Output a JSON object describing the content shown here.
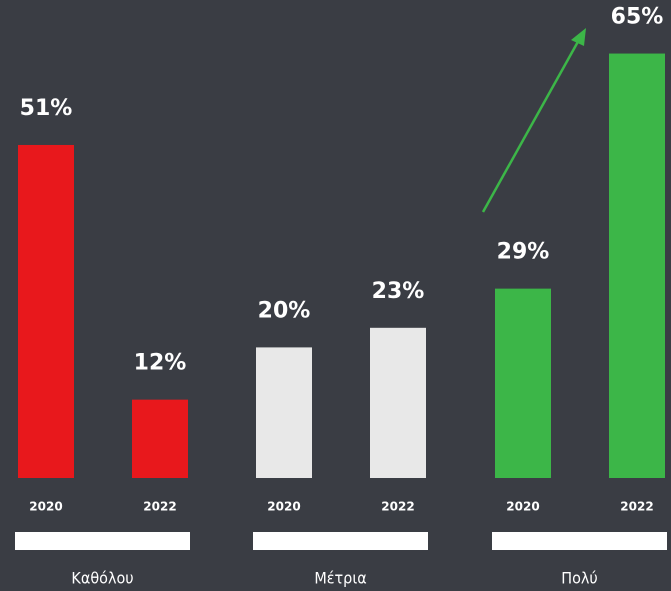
{
  "chart_data": {
    "type": "bar",
    "categories": [
      "Καθόλου",
      "Μέτρια",
      "Πολύ"
    ],
    "colors": [
      "#e8181c",
      "#e8e8e8",
      "#3cb648"
    ],
    "series": [
      {
        "name": "2020",
        "values": [
          51,
          20,
          29
        ],
        "value_labels": [
          "51%",
          "20%",
          "29%"
        ]
      },
      {
        "name": "2022",
        "values": [
          12,
          23,
          65
        ],
        "value_labels": [
          "12%",
          "23%",
          "65%"
        ]
      }
    ]
  }
}
